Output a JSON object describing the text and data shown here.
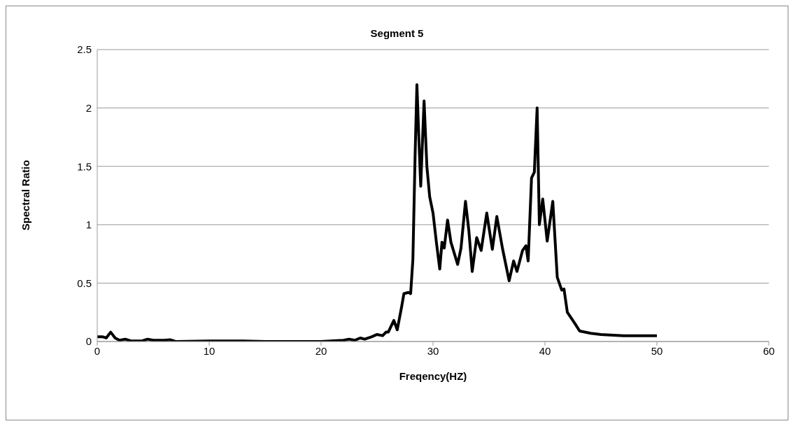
{
  "chart_data": {
    "type": "line",
    "title": "Segment 5",
    "xlabel": "Freqency(HZ)",
    "ylabel": "Spectral Ratio",
    "xlim": [
      0,
      60
    ],
    "xticks": [
      0,
      10,
      20,
      30,
      40,
      50,
      60
    ],
    "ylim": [
      0,
      2.5
    ],
    "yticks": [
      0,
      0.5,
      1,
      1.5,
      2,
      2.5
    ],
    "grid": "y",
    "marker": "none",
    "line_style": "solid",
    "series": [
      {
        "color": "#000000",
        "x": [
          0,
          0.5,
          0.8,
          1.2,
          1.6,
          2,
          2.5,
          3,
          4,
          4.5,
          5,
          6,
          6.5,
          7,
          10,
          13,
          15,
          20,
          22,
          22.5,
          23,
          23.5,
          23.9,
          24.5,
          25,
          25.5,
          25.8,
          26,
          26.5,
          26.8,
          27.2,
          27.4,
          27.8,
          28,
          28.2,
          28.4,
          28.56,
          28.75,
          28.9,
          29.2,
          29.45,
          29.7,
          30,
          30.3,
          30.6,
          30.8,
          31,
          31.3,
          31.6,
          32.2,
          32.5,
          32.9,
          33.2,
          33.5,
          33.9,
          34.3,
          34.8,
          35.3,
          35.7,
          36.2,
          36.8,
          37.2,
          37.5,
          38,
          38.3,
          38.5,
          38.8,
          39.05,
          39.3,
          39.5,
          39.8,
          40.2,
          40.7,
          41.1,
          41.5,
          41.7,
          42,
          42.7,
          43.1,
          44.1,
          45,
          47,
          50
        ],
        "values": [
          0.04,
          0.04,
          0.03,
          0.08,
          0.03,
          0.01,
          0.02,
          0.005,
          0.005,
          0.02,
          0.01,
          0.01,
          0.015,
          0,
          0.005,
          0.005,
          0,
          0,
          0.01,
          0.02,
          0.01,
          0.03,
          0.02,
          0.04,
          0.06,
          0.05,
          0.08,
          0.08,
          0.18,
          0.1,
          0.3,
          0.41,
          0.42,
          0.41,
          0.7,
          1.6,
          2.2,
          1.7,
          1.33,
          2.06,
          1.5,
          1.24,
          1.1,
          0.85,
          0.62,
          0.85,
          0.8,
          1.04,
          0.85,
          0.66,
          0.8,
          1.2,
          0.95,
          0.6,
          0.89,
          0.78,
          1.1,
          0.79,
          1.07,
          0.8,
          0.52,
          0.69,
          0.6,
          0.78,
          0.82,
          0.69,
          1.4,
          1.45,
          2.0,
          1.0,
          1.22,
          0.86,
          1.2,
          0.55,
          0.44,
          0.45,
          0.25,
          0.15,
          0.09,
          0.07,
          0.06,
          0.05,
          0.05
        ]
      }
    ]
  }
}
